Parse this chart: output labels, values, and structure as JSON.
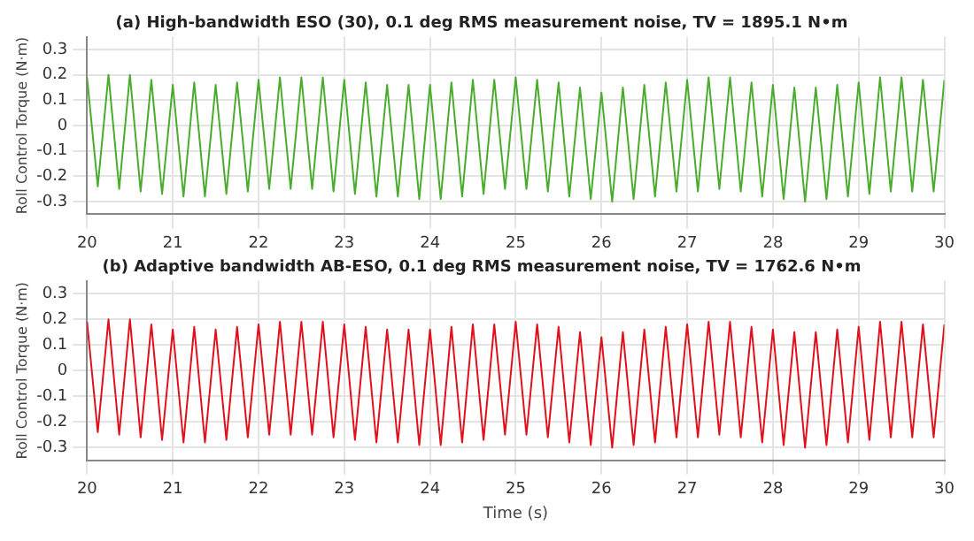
{
  "chart_data": [
    {
      "type": "line",
      "title": "(a) High-bandwidth ESO (30), 0.1 deg RMS measurement noise, TV = 1895.1 N•m",
      "ylabel": "Roll Control Torque (N·m)",
      "x": [
        20,
        20.125,
        20.25,
        20.375,
        20.5,
        20.625,
        20.75,
        20.875,
        21,
        21.125,
        21.25,
        21.375,
        21.5,
        21.625,
        21.75,
        21.875,
        22,
        22.125,
        22.25,
        22.375,
        22.5,
        22.625,
        22.75,
        22.875,
        23,
        23.125,
        23.25,
        23.375,
        23.5,
        23.625,
        23.75,
        23.875,
        24,
        24.125,
        24.25,
        24.375,
        24.5,
        24.625,
        24.75,
        24.875,
        25,
        25.125,
        25.25,
        25.375,
        25.5,
        25.625,
        25.75,
        25.875,
        26,
        26.125,
        26.25,
        26.375,
        26.5,
        26.625,
        26.75,
        26.875,
        27,
        27.125,
        27.25,
        27.375,
        27.5,
        27.625,
        27.75,
        27.875,
        28,
        28.125,
        28.25,
        28.375,
        28.5,
        28.625,
        28.75,
        28.875,
        29,
        29.125,
        29.25,
        29.375,
        29.5,
        29.625,
        29.75,
        29.875,
        30
      ],
      "series": [
        {
          "color": "#4aac2d",
          "values": [
            0.19,
            -0.24,
            0.2,
            -0.25,
            0.2,
            -0.26,
            0.18,
            -0.27,
            0.16,
            -0.28,
            0.17,
            -0.28,
            0.16,
            -0.27,
            0.17,
            -0.26,
            0.18,
            -0.25,
            0.19,
            -0.25,
            0.19,
            -0.25,
            0.19,
            -0.26,
            0.18,
            -0.27,
            0.17,
            -0.28,
            0.16,
            -0.28,
            0.16,
            -0.29,
            0.16,
            -0.29,
            0.17,
            -0.28,
            0.18,
            -0.27,
            0.18,
            -0.25,
            0.19,
            -0.25,
            0.18,
            -0.26,
            0.17,
            -0.28,
            0.15,
            -0.29,
            0.13,
            -0.3,
            0.15,
            -0.29,
            0.16,
            -0.28,
            0.17,
            -0.26,
            0.18,
            -0.26,
            0.19,
            -0.25,
            0.19,
            -0.26,
            0.17,
            -0.28,
            0.16,
            -0.29,
            0.15,
            -0.3,
            0.15,
            -0.29,
            0.16,
            -0.28,
            0.17,
            -0.27,
            0.19,
            -0.26,
            0.19,
            -0.26,
            0.18,
            -0.26,
            0.18
          ]
        }
      ],
      "xlim": [
        20,
        30
      ],
      "xticks": [
        20,
        21,
        22,
        23,
        24,
        25,
        26,
        27,
        28,
        29,
        30
      ],
      "ylim": [
        -0.35,
        0.35
      ],
      "yticks": [
        -0.3,
        -0.2,
        -0.1,
        0,
        0.1,
        0.2,
        0.3
      ],
      "grid": true,
      "legend": false
    },
    {
      "type": "line",
      "title": "(b) Adaptive bandwidth AB-ESO, 0.1 deg RMS measurement noise, TV = 1762.6 N•m",
      "xlabel": "Time (s)",
      "ylabel": "Roll Control Torque (N·m)",
      "x": [
        20,
        20.125,
        20.25,
        20.375,
        20.5,
        20.625,
        20.75,
        20.875,
        21,
        21.125,
        21.25,
        21.375,
        21.5,
        21.625,
        21.75,
        21.875,
        22,
        22.125,
        22.25,
        22.375,
        22.5,
        22.625,
        22.75,
        22.875,
        23,
        23.125,
        23.25,
        23.375,
        23.5,
        23.625,
        23.75,
        23.875,
        24,
        24.125,
        24.25,
        24.375,
        24.5,
        24.625,
        24.75,
        24.875,
        25,
        25.125,
        25.25,
        25.375,
        25.5,
        25.625,
        25.75,
        25.875,
        26,
        26.125,
        26.25,
        26.375,
        26.5,
        26.625,
        26.75,
        26.875,
        27,
        27.125,
        27.25,
        27.375,
        27.5,
        27.625,
        27.75,
        27.875,
        28,
        28.125,
        28.25,
        28.375,
        28.5,
        28.625,
        28.75,
        28.875,
        29,
        29.125,
        29.25,
        29.375,
        29.5,
        29.625,
        29.75,
        29.875,
        30
      ],
      "series": [
        {
          "color": "#e0101c",
          "values": [
            0.19,
            -0.24,
            0.2,
            -0.25,
            0.2,
            -0.26,
            0.18,
            -0.27,
            0.16,
            -0.28,
            0.17,
            -0.28,
            0.16,
            -0.27,
            0.17,
            -0.26,
            0.18,
            -0.25,
            0.19,
            -0.25,
            0.19,
            -0.25,
            0.19,
            -0.26,
            0.18,
            -0.27,
            0.17,
            -0.28,
            0.16,
            -0.28,
            0.16,
            -0.29,
            0.16,
            -0.29,
            0.17,
            -0.28,
            0.18,
            -0.27,
            0.18,
            -0.25,
            0.19,
            -0.25,
            0.18,
            -0.26,
            0.17,
            -0.28,
            0.15,
            -0.29,
            0.13,
            -0.3,
            0.15,
            -0.29,
            0.16,
            -0.28,
            0.17,
            -0.26,
            0.18,
            -0.26,
            0.19,
            -0.25,
            0.19,
            -0.26,
            0.17,
            -0.28,
            0.16,
            -0.29,
            0.15,
            -0.3,
            0.15,
            -0.29,
            0.16,
            -0.28,
            0.17,
            -0.27,
            0.19,
            -0.26,
            0.19,
            -0.26,
            0.18,
            -0.26,
            0.18
          ]
        }
      ],
      "xlim": [
        20,
        30
      ],
      "xticks": [
        20,
        21,
        22,
        23,
        24,
        25,
        26,
        27,
        28,
        29,
        30
      ],
      "ylim": [
        -0.35,
        0.35
      ],
      "yticks": [
        -0.3,
        -0.2,
        -0.1,
        0,
        0.1,
        0.2,
        0.3
      ],
      "grid": true,
      "legend": false
    }
  ]
}
